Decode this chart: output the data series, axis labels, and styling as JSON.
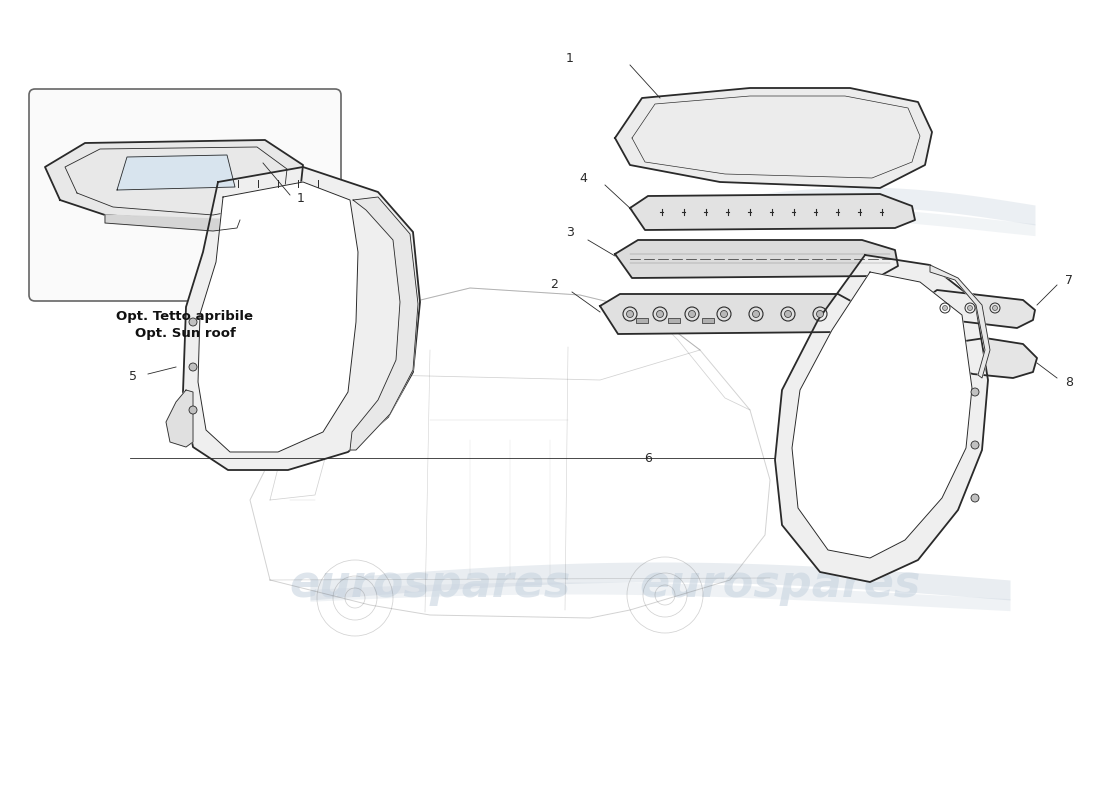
{
  "background_color": "#ffffff",
  "line_color": "#2a2a2a",
  "light_line_color": "#888888",
  "watermark_text": "eurospares",
  "watermark_color": "#c8d4e0",
  "inset_label_line1": "Opt. Tetto apribile",
  "inset_label_line2": "Opt. Sun roof",
  "wave_color": "#c0ccd8",
  "part_label_color": "#111111",
  "fig_width": 11.0,
  "fig_height": 8.0,
  "dpi": 100
}
